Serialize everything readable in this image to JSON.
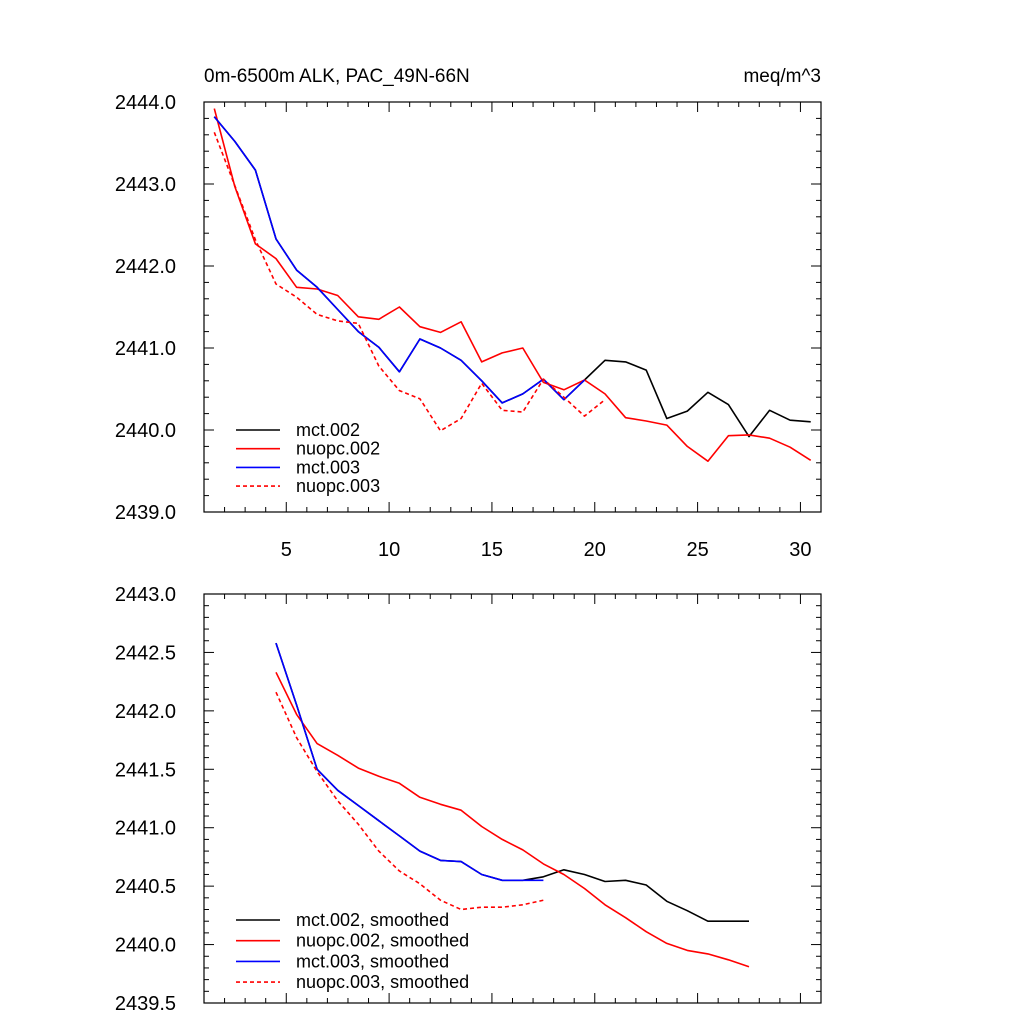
{
  "chart_data": [
    {
      "type": "line",
      "title": "0m-6500m ALK, PAC_49N-66N",
      "units": "meq/m^3",
      "xlim": [
        1,
        31
      ],
      "ylim": [
        2439.0,
        2444.0
      ],
      "xticks": [
        5,
        10,
        15,
        20,
        25,
        30
      ],
      "yticks": [
        2439.0,
        2440.0,
        2441.0,
        2442.0,
        2443.0,
        2444.0
      ],
      "xtick_labels": [
        "5",
        "10",
        "15",
        "20",
        "25",
        "30"
      ],
      "ytick_labels": [
        "2439.0",
        "2440.0",
        "2441.0",
        "2442.0",
        "2443.0",
        "2444.0"
      ],
      "legend_position": "bottom-left",
      "series": [
        {
          "name": "mct.002",
          "color": "#000000",
          "dash": "solid",
          "x": [
            1.5,
            2.5,
            3.5,
            4.5,
            5.5,
            6.5,
            7.5,
            8.5,
            9.5,
            10.5,
            11.5,
            12.5,
            13.5,
            14.5,
            15.5,
            16.5,
            17.5,
            18.5,
            19.5,
            20.5,
            21.5,
            22.5,
            23.5,
            24.5,
            25.5,
            26.5,
            27.5,
            28.5,
            29.5,
            30.5
          ],
          "y": [
            2443.82,
            2443.52,
            2443.17,
            2442.33,
            2441.95,
            2441.74,
            2441.47,
            2441.2,
            2441.01,
            2440.71,
            2441.11,
            2441.0,
            2440.85,
            2440.6,
            2440.33,
            2440.44,
            2440.62,
            2440.37,
            2440.61,
            2440.85,
            2440.83,
            2440.73,
            2440.14,
            2440.23,
            2440.46,
            2440.31,
            2439.92,
            2440.24,
            2440.12,
            2440.1
          ]
        },
        {
          "name": "nuopc.002",
          "color": "#ff0000",
          "dash": "solid",
          "x": [
            1.5,
            2.5,
            3.5,
            4.5,
            5.5,
            6.5,
            7.5,
            8.5,
            9.5,
            10.5,
            11.5,
            12.5,
            13.5,
            14.5,
            15.5,
            16.5,
            17.5,
            18.5,
            19.5,
            20.5,
            21.5,
            22.5,
            23.5,
            24.5,
            25.5,
            26.5,
            27.5,
            28.5,
            29.5,
            30.5
          ],
          "y": [
            2443.92,
            2442.97,
            2442.27,
            2442.09,
            2441.74,
            2441.72,
            2441.64,
            2441.38,
            2441.35,
            2441.5,
            2441.26,
            2441.19,
            2441.32,
            2440.83,
            2440.94,
            2441.0,
            2440.58,
            2440.49,
            2440.61,
            2440.44,
            2440.15,
            2440.11,
            2440.06,
            2439.8,
            2439.62,
            2439.93,
            2439.94,
            2439.9,
            2439.79,
            2439.63
          ]
        },
        {
          "name": "mct.003",
          "color": "#0000ff",
          "dash": "solid",
          "x": [
            1.5,
            2.5,
            3.5,
            4.5,
            5.5,
            6.5,
            7.5,
            8.5,
            9.5,
            10.5,
            11.5,
            12.5,
            13.5,
            14.5,
            15.5,
            16.5,
            17.5,
            18.5,
            19.5
          ],
          "y": [
            2443.82,
            2443.52,
            2443.17,
            2442.33,
            2441.95,
            2441.74,
            2441.47,
            2441.2,
            2441.01,
            2440.71,
            2441.11,
            2441.0,
            2440.85,
            2440.6,
            2440.33,
            2440.44,
            2440.62,
            2440.37,
            2440.61
          ]
        },
        {
          "name": "nuopc.003",
          "color": "#ff0000",
          "dash": "dashed",
          "x": [
            1.5,
            2.5,
            3.5,
            4.5,
            5.5,
            6.5,
            7.5,
            8.5,
            9.5,
            10.5,
            11.5,
            12.5,
            13.5,
            14.5,
            15.5,
            16.5,
            17.5,
            18.5,
            19.5,
            20.5
          ],
          "y": [
            2443.63,
            2442.98,
            2442.32,
            2441.78,
            2441.62,
            2441.41,
            2441.33,
            2441.3,
            2440.78,
            2440.48,
            2440.38,
            2439.99,
            2440.14,
            2440.57,
            2440.24,
            2440.22,
            2440.62,
            2440.4,
            2440.17,
            2440.37
          ]
        }
      ]
    },
    {
      "type": "line",
      "xlim": [
        1,
        31
      ],
      "ylim": [
        2439.5,
        2443.0
      ],
      "xticks": [
        5,
        10,
        15,
        20,
        25,
        30
      ],
      "yticks": [
        2439.5,
        2440.0,
        2440.5,
        2441.0,
        2441.5,
        2442.0,
        2442.5,
        2443.0
      ],
      "ytick_labels": [
        "2439.5",
        "2440.0",
        "2440.5",
        "2441.0",
        "2441.5",
        "2442.0",
        "2442.5",
        "2443.0"
      ],
      "legend_position": "bottom-left",
      "series": [
        {
          "name": "mct.002, smoothed",
          "color": "#000000",
          "dash": "solid",
          "x": [
            4.5,
            5.5,
            6.5,
            7.5,
            8.5,
            9.5,
            10.5,
            11.5,
            12.5,
            13.5,
            14.5,
            15.5,
            16.5,
            17.5,
            18.5,
            19.5,
            20.5,
            21.5,
            22.5,
            23.5,
            24.5,
            25.5,
            26.5,
            27.5
          ],
          "y": [
            2442.58,
            2442.05,
            2441.5,
            2441.32,
            2441.19,
            2441.06,
            2440.93,
            2440.8,
            2440.72,
            2440.71,
            2440.6,
            2440.55,
            2440.55,
            2440.58,
            2440.64,
            2440.6,
            2440.54,
            2440.55,
            2440.51,
            2440.37,
            2440.29,
            2440.2,
            2440.2,
            2440.2
          ]
        },
        {
          "name": "nuopc.002, smoothed",
          "color": "#ff0000",
          "dash": "solid",
          "x": [
            4.5,
            5.5,
            6.5,
            7.5,
            8.5,
            9.5,
            10.5,
            11.5,
            12.5,
            13.5,
            14.5,
            15.5,
            16.5,
            17.5,
            18.5,
            19.5,
            20.5,
            21.5,
            22.5,
            23.5,
            24.5,
            25.5,
            26.5,
            27.5
          ],
          "y": [
            2442.33,
            2441.97,
            2441.72,
            2441.62,
            2441.51,
            2441.44,
            2441.38,
            2441.26,
            2441.2,
            2441.15,
            2441.01,
            2440.9,
            2440.81,
            2440.69,
            2440.6,
            2440.48,
            2440.34,
            2440.23,
            2440.11,
            2440.01,
            2439.95,
            2439.92,
            2439.87,
            2439.81
          ]
        },
        {
          "name": "mct.003, smoothed",
          "color": "#0000ff",
          "dash": "solid",
          "x": [
            4.5,
            5.5,
            6.5,
            7.5,
            8.5,
            9.5,
            10.5,
            11.5,
            12.5,
            13.5,
            14.5,
            15.5,
            16.5,
            17.5
          ],
          "y": [
            2442.58,
            2442.05,
            2441.5,
            2441.32,
            2441.19,
            2441.06,
            2440.93,
            2440.8,
            2440.72,
            2440.71,
            2440.6,
            2440.55,
            2440.55,
            2440.55
          ]
        },
        {
          "name": "nuopc.003, smoothed",
          "color": "#ff0000",
          "dash": "dashed",
          "x": [
            4.5,
            5.5,
            6.5,
            7.5,
            8.5,
            9.5,
            10.5,
            11.5,
            12.5,
            13.5,
            14.5,
            15.5,
            16.5,
            17.5
          ],
          "y": [
            2442.16,
            2441.77,
            2441.48,
            2441.23,
            2441.03,
            2440.8,
            2440.63,
            2440.52,
            2440.38,
            2440.3,
            2440.32,
            2440.32,
            2440.34,
            2440.38
          ]
        }
      ]
    }
  ]
}
